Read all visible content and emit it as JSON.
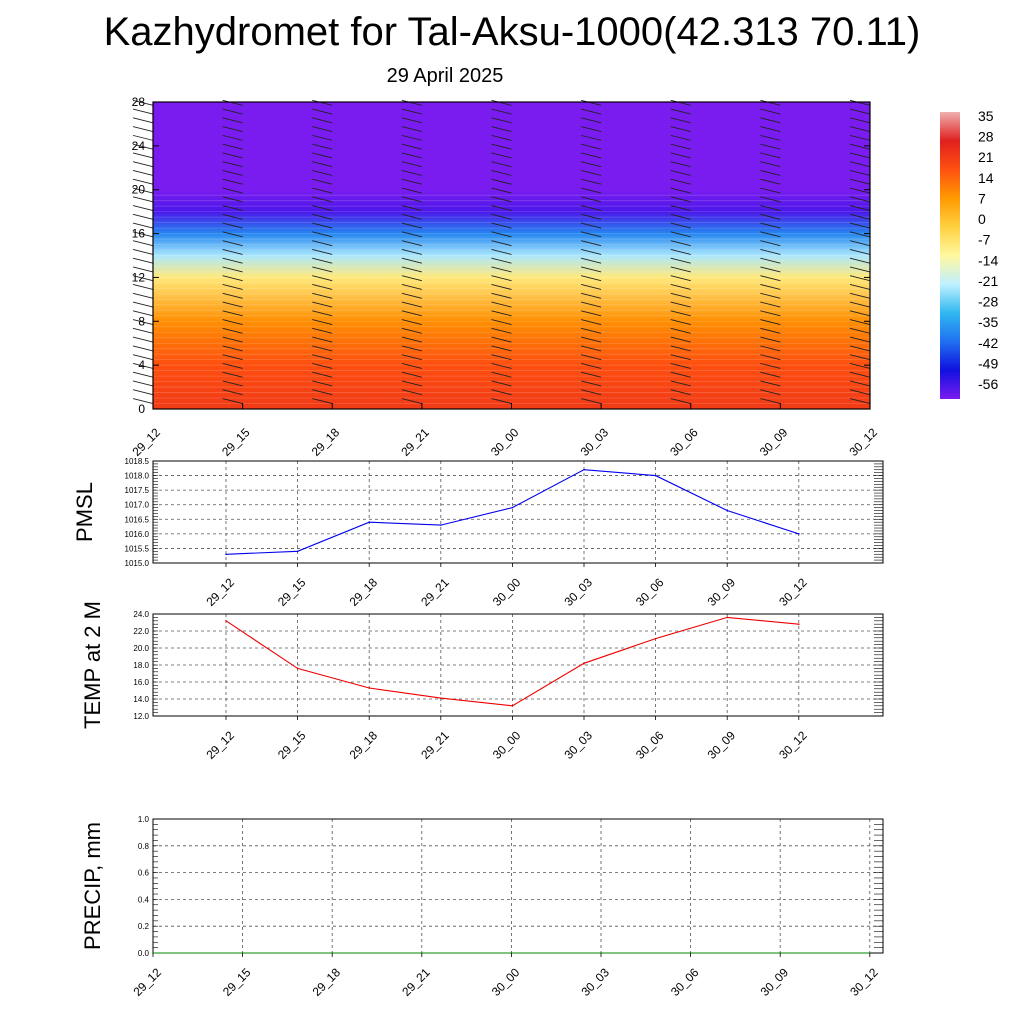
{
  "title": "Kazhydromet for Tal-Aksu-1000(42.313 70.11)",
  "subtitle": "29 April 2025",
  "chart_data": [
    {
      "type": "heatmap",
      "name": "vertical-profile",
      "ylim": [
        0,
        28
      ],
      "y_ticks": [
        "0",
        "4",
        "8",
        "12",
        "16",
        "20",
        "24",
        "28"
      ],
      "x_ticks": [
        "29_12",
        "29_15",
        "29_18",
        "29_21",
        "30_00",
        "30_03",
        "30_06",
        "30_09",
        "30_12"
      ],
      "colorbar": {
        "labels": [
          "35",
          "28",
          "21",
          "14",
          "7",
          "0",
          "-7",
          "-14",
          "-21",
          "-28",
          "-35",
          "-42",
          "-49",
          "-56"
        ],
        "colors": [
          "#f0b0b0",
          "#e02020",
          "#ff5010",
          "#ff9a00",
          "#ffd040",
          "#fff8a0",
          "#c0f0ff",
          "#30b8f0",
          "#2070f0",
          "#1010e0",
          "#7a1cf0"
        ]
      },
      "temperature_by_level": [
        {
          "level": 0,
          "value": 21
        },
        {
          "level": 4,
          "value": 17
        },
        {
          "level": 8,
          "value": 9
        },
        {
          "level": 12,
          "value": -7
        },
        {
          "level": 14,
          "value": -21
        },
        {
          "level": 16,
          "value": -35
        },
        {
          "level": 18,
          "value": -52
        },
        {
          "level": 20,
          "value": -56
        },
        {
          "level": 28,
          "value": -56
        }
      ]
    },
    {
      "type": "line",
      "name": "PMSL",
      "ylabel": "PMSL",
      "ylim": [
        1015.0,
        1018.5
      ],
      "y_ticks": [
        "1015.0",
        "1015.5",
        "1016.0",
        "1016.5",
        "1017.0",
        "1017.5",
        "1018.0",
        "1018.5"
      ],
      "categories": [
        "29_12",
        "29_15",
        "29_18",
        "29_21",
        "30_00",
        "30_03",
        "30_06",
        "30_09",
        "30_12"
      ],
      "values": [
        1015.3,
        1015.4,
        1016.4,
        1016.3,
        1016.9,
        1018.2,
        1018.0,
        1016.8,
        1016.0
      ],
      "color": "#0000ee"
    },
    {
      "type": "line",
      "name": "TEMP",
      "ylabel": "TEMP at 2 M",
      "ylim": [
        12.0,
        24.0
      ],
      "y_ticks": [
        "12.0",
        "14.0",
        "16.0",
        "18.0",
        "20.0",
        "22.0",
        "24.0"
      ],
      "categories": [
        "29_12",
        "29_15",
        "29_18",
        "29_21",
        "30_00",
        "30_03",
        "30_06",
        "30_09",
        "30_12"
      ],
      "values": [
        23.2,
        17.6,
        15.3,
        14.1,
        13.2,
        18.2,
        21.1,
        23.6,
        22.8
      ],
      "color": "#ee0000"
    },
    {
      "type": "line",
      "name": "PRECIP",
      "ylabel": "PRECIP, mm",
      "ylim": [
        0.0,
        1.0
      ],
      "y_ticks": [
        "0.0",
        "0.2",
        "0.4",
        "0.6",
        "0.8",
        "1.0"
      ],
      "categories": [
        "29_12",
        "29_15",
        "29_18",
        "29_21",
        "30_00",
        "30_03",
        "30_06",
        "30_09",
        "30_12"
      ],
      "values": [
        0,
        0,
        0,
        0,
        0,
        0,
        0,
        0,
        0
      ],
      "color": "#008800"
    }
  ]
}
